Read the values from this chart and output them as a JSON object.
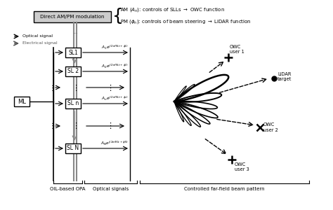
{
  "bg_color": "#ffffff",
  "mod_box_label": "Direct AM/PM modulation",
  "ml_label": "ML",
  "sl_labels": [
    "SL1",
    "SL 2",
    "SL n",
    "SL N"
  ],
  "am_text": "AM $(A_n)$: controls of SLLs $\\rightarrow$ OWC function",
  "pm_text": "PM $(\\phi_n)$: controls of beam steering $\\rightarrow$ LiDAR function",
  "bottom_labels": [
    "OIL-based OPA",
    "Optical signals",
    "Controlled far-field beam pattern"
  ],
  "legend_opt": "Optical signal",
  "legend_elec": "Electrical signal",
  "owc1_label": "OWC\nuser 1",
  "owc2_label": "OWC\nuser 2",
  "owc3_label": "OWC\nuser 3",
  "lidar_label": "LiDAR\ntarget",
  "sig_labels": [
    "$A_1 e^{j(2\\pi f_{ML}t+\\phi_1)}$",
    "$A_2 e^{j(2\\pi f_{ML}t+\\phi_2)}$",
    "$A_n e^{j(2\\pi f_{ML}t+\\phi_n)}$",
    "$A_N e^{j(2\\pi f_{ML}t+\\phi_N)}$"
  ]
}
